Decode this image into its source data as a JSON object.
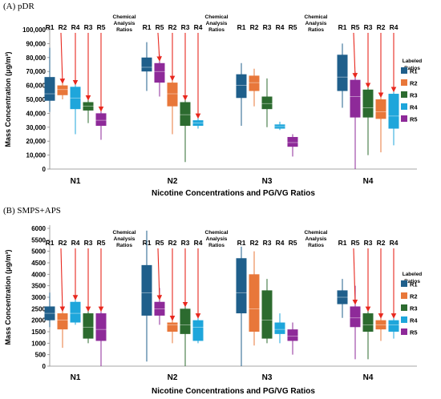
{
  "colors": {
    "R1": "#1f5f8b",
    "R2": "#e8773a",
    "R3": "#2c6b2f",
    "R4": "#1ea6db",
    "R5": "#8e2a99",
    "arrow": "#e8281e",
    "axis": "#888888"
  },
  "chart_data": [
    {
      "type": "box",
      "panel_label": "(A) pDR",
      "ylabel": "Mass Concentration (μg/m³)",
      "xlabel": "Nicotine Concentrations and PG/VG Ratios",
      "ylim": [
        0,
        100000
      ],
      "yticks": [
        "0",
        "10,000",
        "20,000",
        "30,000",
        "40,000",
        "50,000",
        "60,000",
        "70,000",
        "80,000",
        "90,000",
        "100,000"
      ],
      "categories": [
        "N1",
        "N2",
        "N3",
        "N4"
      ],
      "annotation": "Chemical Analysis Ratios",
      "legend_title": "Labeled Ratios",
      "legend": [
        "R1",
        "R2",
        "R3",
        "R4",
        "R5"
      ],
      "groups": [
        {
          "name": "N1",
          "order": [
            "R1",
            "R2",
            "R4",
            "R3",
            "R5"
          ],
          "boxes": [
            {
              "ratio": "R1",
              "min": 41000,
              "q1": 49000,
              "median": 54000,
              "q3": 66000,
              "max": 87000
            },
            {
              "ratio": "R2",
              "min": 50000,
              "q1": 53000,
              "median": 57000,
              "q3": 60000,
              "max": 62000
            },
            {
              "ratio": "R4",
              "min": 25000,
              "q1": 43000,
              "median": 51000,
              "q3": 59000,
              "max": 65000
            },
            {
              "ratio": "R3",
              "min": 33000,
              "q1": 42000,
              "median": 45000,
              "q3": 48000,
              "max": 50000
            },
            {
              "ratio": "R5",
              "min": 21000,
              "q1": 31000,
              "median": 35000,
              "q3": 40000,
              "max": 52000
            }
          ]
        },
        {
          "name": "N2",
          "order": [
            "R1",
            "R5",
            "R2",
            "R3",
            "R4"
          ],
          "boxes": [
            {
              "ratio": "R1",
              "min": 56000,
              "q1": 70000,
              "median": 73000,
              "q3": 80000,
              "max": 91000
            },
            {
              "ratio": "R5",
              "min": 52000,
              "q1": 62000,
              "median": 70000,
              "q3": 76000,
              "max": 82000
            },
            {
              "ratio": "R2",
              "min": 25000,
              "q1": 45000,
              "median": 54000,
              "q3": 62000,
              "max": 81000
            },
            {
              "ratio": "R3",
              "min": 5000,
              "q1": 31000,
              "median": 39000,
              "q3": 48000,
              "max": 52000
            },
            {
              "ratio": "R4",
              "min": 29000,
              "q1": 31000,
              "median": 33000,
              "q3": 35000,
              "max": 37000
            }
          ]
        },
        {
          "name": "N3",
          "order": [
            "R1",
            "R2",
            "R3",
            "R4",
            "R5"
          ],
          "boxes": [
            {
              "ratio": "R1",
              "min": 31000,
              "q1": 51000,
              "median": 60000,
              "q3": 68000,
              "max": 76000
            },
            {
              "ratio": "R2",
              "min": 45000,
              "q1": 56000,
              "median": 62000,
              "q3": 67000,
              "max": 72000
            },
            {
              "ratio": "R3",
              "min": 30000,
              "q1": 43000,
              "median": 47000,
              "q3": 52000,
              "max": 65000
            },
            {
              "ratio": "R4",
              "min": 28000,
              "q1": 29000,
              "median": 30500,
              "q3": 32000,
              "max": 34000
            },
            {
              "ratio": "R5",
              "min": 9000,
              "q1": 16000,
              "median": 19000,
              "q3": 23000,
              "max": 25000
            }
          ]
        },
        {
          "name": "N4",
          "order": [
            "R1",
            "R5",
            "R3",
            "R2",
            "R4"
          ],
          "boxes": [
            {
              "ratio": "R1",
              "min": 44000,
              "q1": 56000,
              "median": 66000,
              "q3": 82000,
              "max": 90000
            },
            {
              "ratio": "R5",
              "min": 0,
              "q1": 37000,
              "median": 52000,
              "q3": 64000,
              "max": 70000
            },
            {
              "ratio": "R3",
              "min": 10000,
              "q1": 37000,
              "median": 44000,
              "q3": 57000,
              "max": 62000
            },
            {
              "ratio": "R2",
              "min": 12000,
              "q1": 36000,
              "median": 41000,
              "q3": 50000,
              "max": 57000
            },
            {
              "ratio": "R4",
              "min": 17000,
              "q1": 29000,
              "median": 38000,
              "q3": 54000,
              "max": 65000
            }
          ]
        }
      ]
    },
    {
      "type": "box",
      "panel_label": "(B) SMPS+APS",
      "ylabel": "Mass Concentration (μg/m³)",
      "xlabel": "Nicotine Concentrations and PG/VG Ratios",
      "ylim": [
        0,
        6000
      ],
      "yticks": [
        "0",
        "500",
        "1000",
        "1500",
        "2000",
        "2500",
        "3000",
        "3500",
        "4000",
        "4500",
        "5000",
        "5500",
        "6000"
      ],
      "categories": [
        "N1",
        "N2",
        "N3",
        "N4"
      ],
      "annotation": "Chemical Analysis Ratios",
      "legend_title": "Labeled Ratios",
      "legend": [
        "R1",
        "R2",
        "R3",
        "R4",
        "R5"
      ],
      "groups": [
        {
          "name": "N1",
          "order": [
            "R1",
            "R2",
            "R4",
            "R3",
            "R5"
          ],
          "boxes": [
            {
              "ratio": "R1",
              "min": 1700,
              "q1": 2000,
              "median": 2300,
              "q3": 2600,
              "max": 3200
            },
            {
              "ratio": "R2",
              "min": 800,
              "q1": 1600,
              "median": 2000,
              "q3": 2300,
              "max": 2600
            },
            {
              "ratio": "R4",
              "min": 1800,
              "q1": 1900,
              "median": 2300,
              "q3": 2800,
              "max": 3200
            },
            {
              "ratio": "R3",
              "min": 1000,
              "q1": 1200,
              "median": 1700,
              "q3": 2300,
              "max": 2600
            },
            {
              "ratio": "R5",
              "min": 0,
              "q1": 1100,
              "median": 1600,
              "q3": 2300,
              "max": 2900
            }
          ]
        },
        {
          "name": "N2",
          "order": [
            "R1",
            "R5",
            "R2",
            "R3",
            "R4"
          ],
          "boxes": [
            {
              "ratio": "R1",
              "min": 200,
              "q1": 2200,
              "median": 3200,
              "q3": 4400,
              "max": 5900
            },
            {
              "ratio": "R5",
              "min": 1800,
              "q1": 2200,
              "median": 2500,
              "q3": 2800,
              "max": 3400
            },
            {
              "ratio": "R2",
              "min": 1000,
              "q1": 1500,
              "median": 1800,
              "q3": 1900,
              "max": 2300
            },
            {
              "ratio": "R3",
              "min": 0,
              "q1": 1400,
              "median": 1800,
              "q3": 2500,
              "max": 2900
            },
            {
              "ratio": "R4",
              "min": 1000,
              "q1": 1100,
              "median": 1700,
              "q3": 2000,
              "max": 2300
            }
          ]
        },
        {
          "name": "N3",
          "order": [
            "R1",
            "R2",
            "R3",
            "R4",
            "R5"
          ],
          "boxes": [
            {
              "ratio": "R1",
              "min": 0,
              "q1": 2300,
              "median": 3200,
              "q3": 4700,
              "max": 5200
            },
            {
              "ratio": "R2",
              "min": 900,
              "q1": 1500,
              "median": 2500,
              "q3": 4000,
              "max": 5000
            },
            {
              "ratio": "R3",
              "min": 1000,
              "q1": 1200,
              "median": 2000,
              "q3": 3300,
              "max": 3800
            },
            {
              "ratio": "R4",
              "min": 1000,
              "q1": 1400,
              "median": 1600,
              "q3": 1900,
              "max": 2300
            },
            {
              "ratio": "R5",
              "min": 500,
              "q1": 1100,
              "median": 1300,
              "q3": 1600,
              "max": 1900
            }
          ]
        },
        {
          "name": "N4",
          "order": [
            "R1",
            "R5",
            "R3",
            "R2",
            "R4"
          ],
          "boxes": [
            {
              "ratio": "R1",
              "min": 2100,
              "q1": 2700,
              "median": 3000,
              "q3": 3300,
              "max": 3800
            },
            {
              "ratio": "R5",
              "min": 300,
              "q1": 1700,
              "median": 2100,
              "q3": 2600,
              "max": 3500
            },
            {
              "ratio": "R3",
              "min": 300,
              "q1": 1500,
              "median": 1800,
              "q3": 2300,
              "max": 2600
            },
            {
              "ratio": "R2",
              "min": 1100,
              "q1": 1600,
              "median": 1800,
              "q3": 2000,
              "max": 2300
            },
            {
              "ratio": "R4",
              "min": 1200,
              "q1": 1500,
              "median": 1800,
              "q3": 2000,
              "max": 2300
            }
          ]
        }
      ]
    }
  ]
}
